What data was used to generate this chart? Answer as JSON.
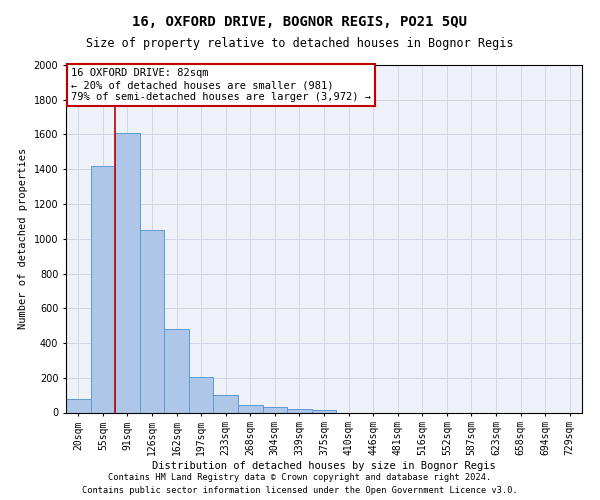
{
  "title": "16, OXFORD DRIVE, BOGNOR REGIS, PO21 5QU",
  "subtitle": "Size of property relative to detached houses in Bognor Regis",
  "xlabel": "Distribution of detached houses by size in Bognor Regis",
  "ylabel": "Number of detached properties",
  "footnote1": "Contains HM Land Registry data © Crown copyright and database right 2024.",
  "footnote2": "Contains public sector information licensed under the Open Government Licence v3.0.",
  "bar_labels": [
    "20sqm",
    "55sqm",
    "91sqm",
    "126sqm",
    "162sqm",
    "197sqm",
    "233sqm",
    "268sqm",
    "304sqm",
    "339sqm",
    "375sqm",
    "410sqm",
    "446sqm",
    "481sqm",
    "516sqm",
    "552sqm",
    "587sqm",
    "623sqm",
    "658sqm",
    "694sqm",
    "729sqm"
  ],
  "bar_values": [
    80,
    1420,
    1610,
    1050,
    480,
    205,
    100,
    45,
    30,
    22,
    15,
    0,
    0,
    0,
    0,
    0,
    0,
    0,
    0,
    0,
    0
  ],
  "bar_color": "#aec6e8",
  "bar_edge_color": "#5b9bd5",
  "vline_x": 1.5,
  "vline_color": "#c00000",
  "annotation_text": "16 OXFORD DRIVE: 82sqm\n← 20% of detached houses are smaller (981)\n79% of semi-detached houses are larger (3,972) →",
  "annotation_box_color": "#c00000",
  "annotation_text_color": "#000000",
  "ylim": [
    0,
    2000
  ],
  "yticks": [
    0,
    200,
    400,
    600,
    800,
    1000,
    1200,
    1400,
    1600,
    1800,
    2000
  ],
  "grid_color": "#d0d8e8",
  "background_color": "#eef2f8",
  "title_fontsize": 10,
  "subtitle_fontsize": 8.5,
  "axis_label_fontsize": 7.5,
  "tick_fontsize": 7,
  "annotation_fontsize": 7.5,
  "footnote_fontsize": 6.2
}
